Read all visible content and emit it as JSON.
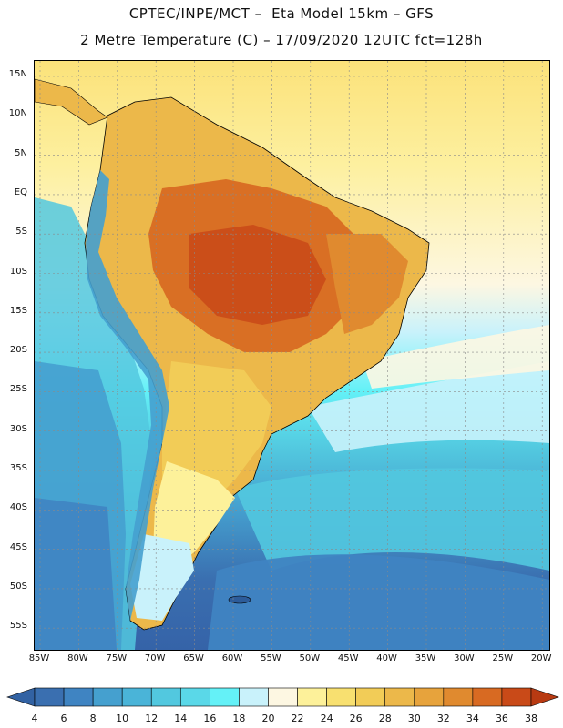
{
  "header": {
    "line1": "CPTEC/INPE/MCT –  Eta Model 15km – GFS",
    "line2": "2 Metre Temperature (C) – 17/09/2020 12UTC fct=128h"
  },
  "map": {
    "lat_labels": [
      "15N",
      "10N",
      "5N",
      "EQ",
      "5S",
      "10S",
      "15S",
      "20S",
      "25S",
      "30S",
      "35S",
      "40S",
      "45S",
      "50S",
      "55S"
    ],
    "lon_labels": [
      "85W",
      "80W",
      "75W",
      "70W",
      "65W",
      "60W",
      "55W",
      "50W",
      "45W",
      "40W",
      "35W",
      "30W",
      "25W",
      "20W"
    ]
  },
  "colorbar": {
    "labels": [
      "4",
      "6",
      "8",
      "10",
      "12",
      "14",
      "16",
      "18",
      "20",
      "22",
      "24",
      "26",
      "28",
      "30",
      "32",
      "34",
      "36",
      "38"
    ],
    "colors": [
      "#3a6fb0",
      "#3f84c2",
      "#45a0cf",
      "#4ab4d8",
      "#52c8df",
      "#5ad8e8",
      "#64f1f7",
      "#c9f2fb",
      "#fdf7e2",
      "#fdf19a",
      "#f8e070",
      "#f2cc57",
      "#ecb84a",
      "#e7a33c",
      "#e08a2f",
      "#d86a22",
      "#c94a18"
    ],
    "low_arrow_color": "#3262a3",
    "high_arrow_color": "#b83a12"
  }
}
